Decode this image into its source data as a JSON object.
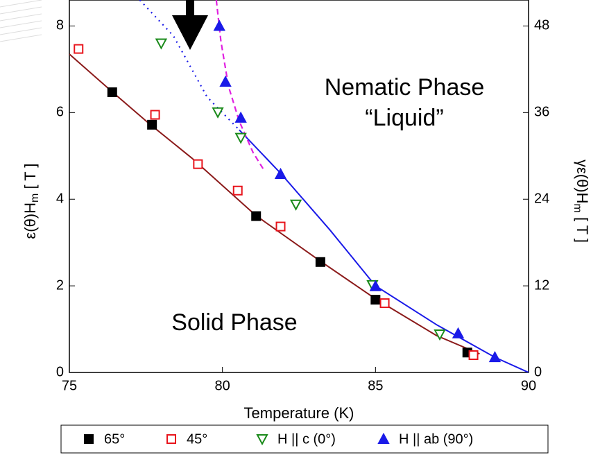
{
  "chart_data": {
    "type": "scatter",
    "x_label": "Temperature (K)",
    "y_label": {
      "main": "ε(θ)H",
      "sub": "m",
      "unit": " [ T ]"
    },
    "y2_label": {
      "main": "γε(θ)H",
      "sub": "m",
      "unit": " [ T ]"
    },
    "annotations": [
      "Nematic Phase",
      "“Liquid”",
      "Solid Phase"
    ],
    "xlim": [
      75,
      90
    ],
    "xticks": [
      75,
      80,
      85,
      90
    ],
    "ylim": [
      0,
      8.6
    ],
    "yticks": [
      0,
      2,
      4,
      6,
      8
    ],
    "y2lim": [
      0,
      51.6
    ],
    "y2ticks": [
      0,
      12,
      24,
      36,
      48
    ],
    "series": [
      {
        "name": "65°",
        "color": "#000000",
        "marker": "square",
        "x": [
          76.4,
          77.7,
          81.1,
          83.2,
          85.0,
          88.0
        ],
        "values": [
          6.47,
          5.72,
          3.61,
          2.55,
          1.68,
          0.46
        ]
      },
      {
        "name": "45°",
        "color": "#e8141c",
        "marker": "open-square",
        "x": [
          75.3,
          77.8,
          79.2,
          80.5,
          81.9,
          85.3,
          88.2
        ],
        "values": [
          7.47,
          5.95,
          4.81,
          4.2,
          3.37,
          1.6,
          0.4
        ]
      },
      {
        "name": "H || c (0°)",
        "color": "#1a8a1a",
        "marker": "open-triangle-down",
        "x": [
          78.0,
          79.85,
          80.6,
          82.4,
          84.9,
          87.1
        ],
        "values": [
          7.6,
          6.01,
          5.42,
          3.88,
          2.02,
          0.88
        ]
      },
      {
        "name": "H || ab (90°)",
        "color": "#1a1ae8",
        "marker": "triangle",
        "x": [
          79.9,
          80.1,
          80.6,
          81.9,
          85.0,
          87.7,
          88.9
        ],
        "values": [
          8.0,
          6.71,
          5.88,
          4.58,
          1.99,
          0.9,
          0.35
        ]
      }
    ],
    "fits": [
      {
        "color": "#8b1a1a",
        "dash": "solid",
        "x": [
          75,
          76.4,
          77.6,
          79,
          81.1,
          83.2,
          85,
          87,
          88.4
        ],
        "values": [
          7.35,
          6.48,
          5.75,
          4.95,
          3.62,
          2.57,
          1.7,
          0.85,
          0.43
        ]
      },
      {
        "color": "#1a1ae8",
        "dash": "solid",
        "x": [
          80.55,
          81.9,
          83.5,
          85,
          87,
          88.9,
          90
        ],
        "values": [
          5.6,
          4.6,
          3.3,
          2.0,
          1.1,
          0.35,
          0
        ]
      },
      {
        "color": "#1a1ae8",
        "dash": "dotted",
        "x": [
          77.3,
          78.4,
          79.5,
          80.55
        ],
        "values": [
          8.6,
          7.77,
          6.36,
          5.6
        ]
      },
      {
        "color": "#e020e0",
        "dash": "dashed",
        "x": [
          79.8,
          79.95,
          80.2,
          80.55,
          81.0,
          81.35
        ],
        "values": [
          8.6,
          7.65,
          6.6,
          5.8,
          5.08,
          4.68
        ]
      }
    ]
  }
}
